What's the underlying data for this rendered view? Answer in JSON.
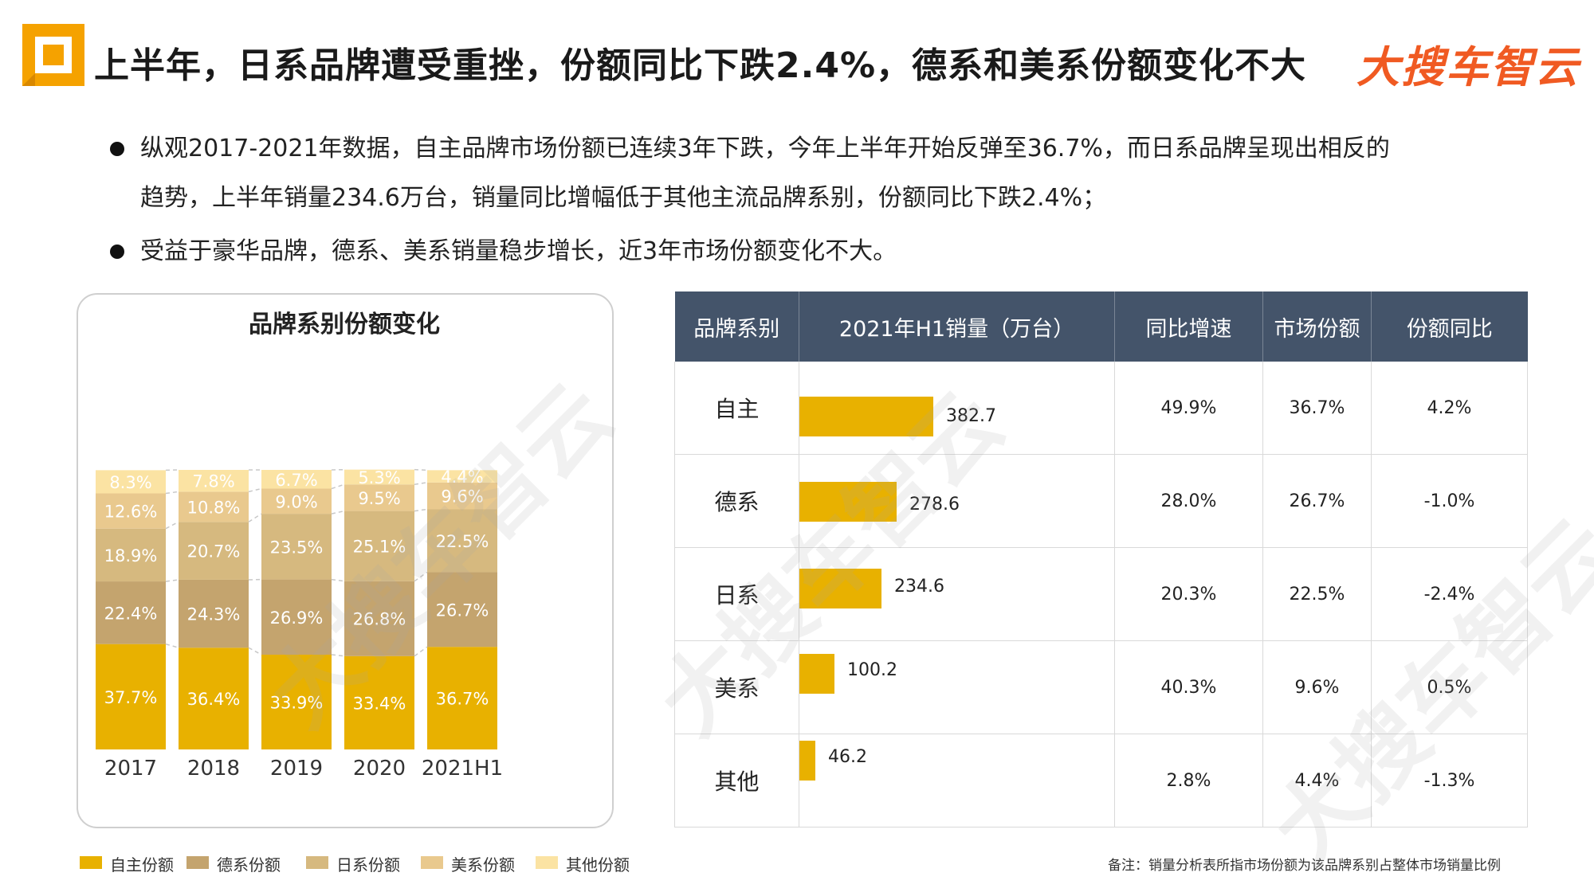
{
  "header": {
    "title": "上半年，日系品牌遭受重挫，份额同比下跌2.4%，德系和美系份额变化不大",
    "brand_logo": "大搜车智云"
  },
  "bullets": [
    "纵观2017-2021年数据，自主品牌市场份额已连续3年下跌，今年上半年开始反弹至36.7%，而日系品牌呈现出相反的",
    "趋势，上半年销量234.6万台，销量同比增幅低于其他主流品牌系别，份额同比下跌2.4%；",
    "受益于豪华品牌，德系、美系销量稳步增长，近3年市场份额变化不大。"
  ],
  "watermark": "大搜车智云",
  "colors": {
    "domestic": "#e8b100",
    "german": "#c4a46e",
    "japanese": "#d6b97f",
    "american": "#e9c98e",
    "other": "#fbe3a3",
    "table_header": "#44546a",
    "title_accent": "#f5a200",
    "brand": "#f05a22"
  },
  "chart_data": {
    "type": "bar",
    "stacked": true,
    "title": "品牌系别份额变化",
    "categories": [
      "2017",
      "2018",
      "2019",
      "2020",
      "2021H1"
    ],
    "series": [
      {
        "name": "自主份额",
        "color": "#e8b100",
        "values": [
          37.7,
          36.4,
          33.9,
          33.4,
          36.7
        ]
      },
      {
        "name": "德系份额",
        "color": "#c4a46e",
        "values": [
          22.4,
          24.3,
          26.9,
          26.8,
          26.7
        ]
      },
      {
        "name": "日系份额",
        "color": "#d6b97f",
        "values": [
          18.9,
          20.7,
          23.5,
          25.1,
          22.5
        ]
      },
      {
        "name": "美系份额",
        "color": "#e9c98e",
        "values": [
          12.6,
          10.8,
          9.0,
          9.5,
          9.6
        ]
      },
      {
        "name": "其他份额",
        "color": "#fbe3a3",
        "values": [
          8.3,
          7.8,
          6.7,
          5.3,
          4.4
        ]
      }
    ],
    "labels": [
      [
        "37.7%",
        "36.4%",
        "33.9%",
        "33.4%",
        "36.7%"
      ],
      [
        "22.4%",
        "24.3%",
        "26.9%",
        "26.8%",
        "26.7%"
      ],
      [
        "18.9%",
        "20.7%",
        "23.5%",
        "25.1%",
        "22.5%"
      ],
      [
        "12.6%",
        "10.8%",
        "9.0%",
        "9.5%",
        "9.6%"
      ],
      [
        "8.3%",
        "7.8%",
        "6.7%",
        "5.3%",
        "4.4%"
      ]
    ],
    "ylim": [
      0,
      100
    ],
    "legend_position": "bottom"
  },
  "table": {
    "headers": [
      "品牌系别",
      "2021年H1销量（万台）",
      "同比增速",
      "市场份额",
      "份额同比"
    ],
    "max_sales": 382.7,
    "rows": [
      {
        "name": "自主",
        "sales": 382.7,
        "sales_label": "382.7",
        "growth": "49.9%",
        "share": "36.7%",
        "share_change": "4.2%"
      },
      {
        "name": "德系",
        "sales": 278.6,
        "sales_label": "278.6",
        "growth": "28.0%",
        "share": "26.7%",
        "share_change": "-1.0%"
      },
      {
        "name": "日系",
        "sales": 234.6,
        "sales_label": "234.6",
        "growth": "20.3%",
        "share": "22.5%",
        "share_change": "-2.4%"
      },
      {
        "name": "美系",
        "sales": 100.2,
        "sales_label": "100.2",
        "growth": "40.3%",
        "share": "9.6%",
        "share_change": "0.5%"
      },
      {
        "name": "其他",
        "sales": 46.2,
        "sales_label": "46.2",
        "growth": "2.8%",
        "share": "4.4%",
        "share_change": "-1.3%"
      }
    ]
  },
  "footnote": "备注：销量分析表所指市场份额为该品牌系别占整体市场销量比例"
}
